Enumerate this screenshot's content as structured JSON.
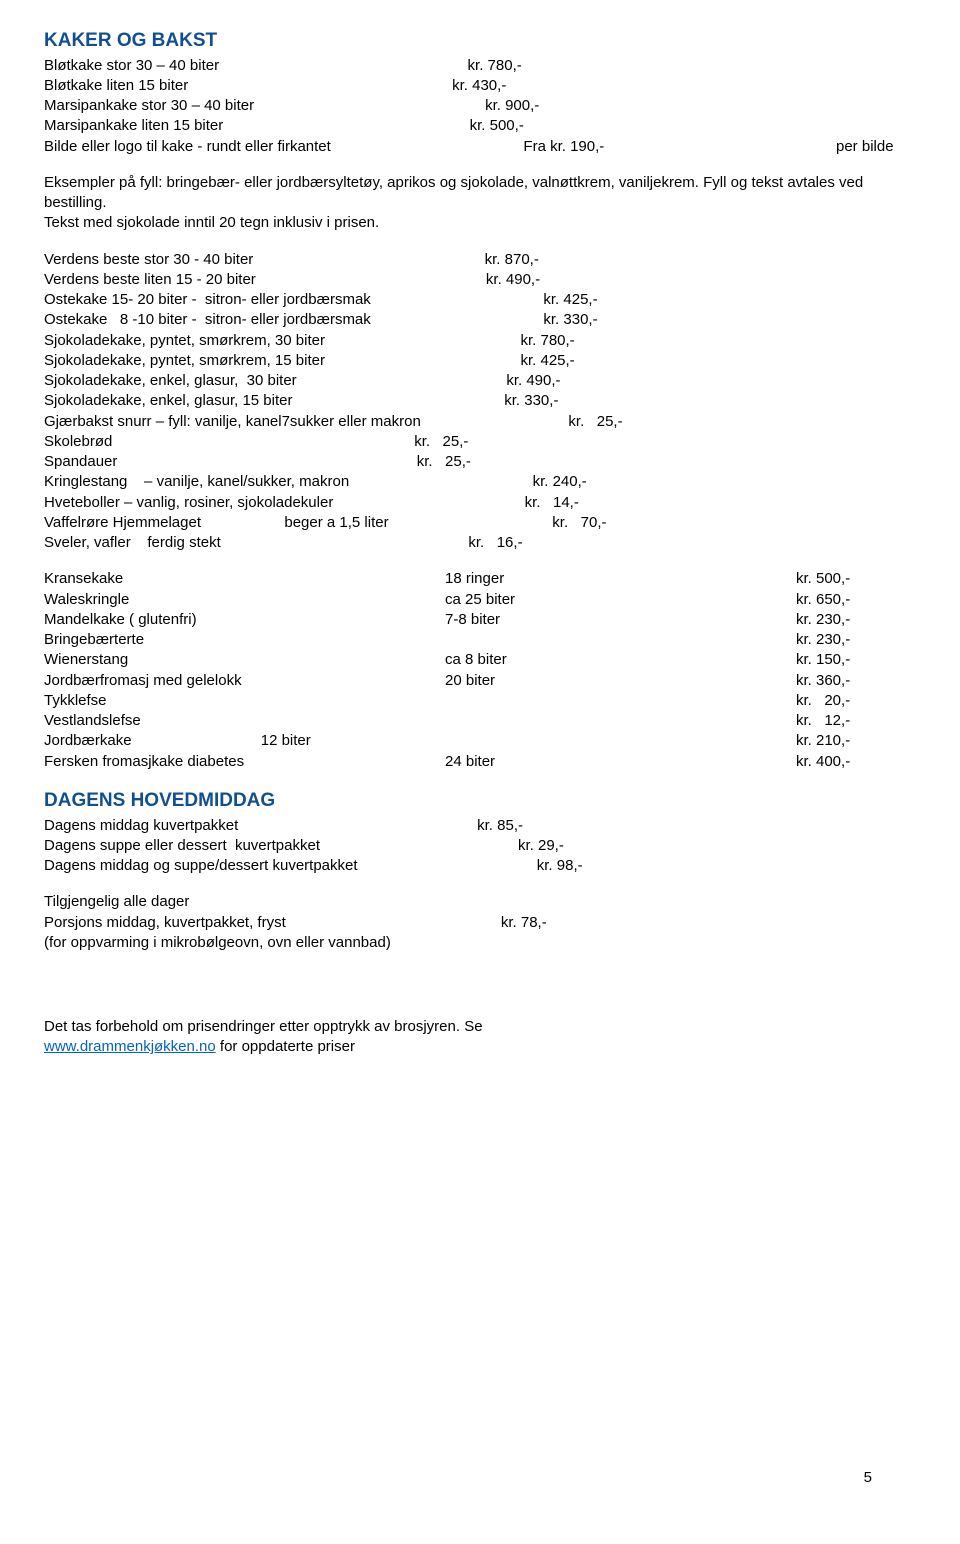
{
  "section1": {
    "title": "KAKER OG BAKST",
    "rows": [
      {
        "label": "Bløtkake stor 30 – 40 biter",
        "price": "kr. 780,-"
      },
      {
        "label": "Bløtkake liten 15 biter",
        "price": "kr. 430,-"
      },
      {
        "label": "Marsipankake stor 30 – 40 biter",
        "price": "kr. 900,-"
      },
      {
        "label": "Marsipankake liten 15 biter",
        "price": "kr. 500,-"
      },
      {
        "label": "Bilde eller logo til kake - rundt eller firkantet",
        "price": "Fra kr. 190,-",
        "extra": "per bilde"
      }
    ],
    "paragraph": "Eksempler på fyll: bringebær- eller jordbærsyltetøy, aprikos  og sjokolade, valnøttkrem, vaniljekrem.  Fyll og tekst avtales  ved bestilling.\nTekst med sjokolade inntil 20 tegn inklusiv i prisen.",
    "rows2": [
      {
        "label": "Verdens beste stor 30 - 40 biter",
        "price": "kr. 870,-"
      },
      {
        "label": "Verdens beste liten 15 - 20 biter",
        "price": "kr. 490,-"
      },
      {
        "label": "Ostekake 15- 20 biter -  sitron- eller jordbærsmak",
        "price": "kr. 425,-"
      },
      {
        "label": "Ostekake   8 -10 biter -  sitron- eller jordbærsmak",
        "price": "kr. 330,-"
      },
      {
        "label": "Sjokoladekake, pyntet, smørkrem, 30 biter",
        "price": "kr. 780,-"
      },
      {
        "label": "Sjokoladekake, pyntet, smørkrem, 15 biter",
        "price": "kr. 425,-"
      },
      {
        "label": "Sjokoladekake, enkel, glasur,  30 biter",
        "price": "kr. 490,-"
      },
      {
        "label": "Sjokoladekake, enkel, glasur, 15 biter",
        "price": "kr. 330,-"
      },
      {
        "label": "Gjærbakst snurr – fyll: vanilje, kanel7sukker eller makron",
        "price": "kr.   25,-"
      },
      {
        "label": "Skolebrød",
        "price": "kr.   25,-"
      },
      {
        "label": "Spandauer",
        "price": "kr.   25,-"
      },
      {
        "label": "Kringlestang    – vanilje, kanel/sukker, makron",
        "price": "kr. 240,-"
      },
      {
        "label": "Hveteboller – vanlig, rosiner, sjokoladekuler",
        "price": "kr.   14,-"
      },
      {
        "label": "Vaffelrøre Hjemmelaget                    beger a 1,5 liter",
        "price": "kr.   70,-"
      },
      {
        "label": "Sveler, vafler    ferdig stekt",
        "price": "kr.   16,-"
      }
    ],
    "rows3": [
      {
        "label": "Kransekake",
        "mid": "18 ringer",
        "price": "kr. 500,-"
      },
      {
        "label": "Waleskringle",
        "mid": "ca 25 biter",
        "price": "kr. 650,-"
      },
      {
        "label": "Mandelkake ( glutenfri)",
        "mid": "7-8 biter",
        "price": "kr. 230,-"
      },
      {
        "label": "Bringebærterte",
        "mid": "",
        "price": "kr. 230,-"
      },
      {
        "label": "Wienerstang",
        "mid": "ca 8 biter",
        "price": "kr. 150,-"
      },
      {
        "label": "Jordbærfromasj med gelelokk",
        "mid": "20 biter",
        "price": "kr. 360,-"
      },
      {
        "label": "Tykklefse",
        "mid": "",
        "price": "kr.   20,-"
      },
      {
        "label": "Vestlandslefse",
        "mid": "",
        "price": "kr.   12,-"
      },
      {
        "label": "Jordbærkake                               12 biter",
        "mid": "",
        "price": "kr. 210,-"
      },
      {
        "label": "Fersken fromasjkake diabetes",
        "mid": "24 biter",
        "price": "kr. 400,-"
      }
    ]
  },
  "section2": {
    "title": "DAGENS HOVEDMIDDAG",
    "rows": [
      {
        "label": "Dagens middag kuvertpakket",
        "price": "kr. 85,-"
      },
      {
        "label": "Dagens suppe eller dessert  kuvertpakket",
        "price": "kr. 29,-"
      },
      {
        "label": "Dagens middag og suppe/dessert kuvertpakket",
        "price": "kr. 98,-"
      }
    ],
    "rows2": [
      {
        "label": "Tilgjengelig alle dager",
        "price": ""
      },
      {
        "label": "Porsjons middag, kuvertpakket, fryst",
        "price": "kr. 78,-"
      },
      {
        "label": "(for oppvarming i mikrobølgeovn, ovn eller vannbad)",
        "price": ""
      }
    ]
  },
  "footer": {
    "text1": "Det tas forbehold om prisendringer etter opptrykk av brosjyren. Se ",
    "link": "www.drammenkjøkken.no",
    "text2": " for oppdaterte priser",
    "page": "5"
  }
}
